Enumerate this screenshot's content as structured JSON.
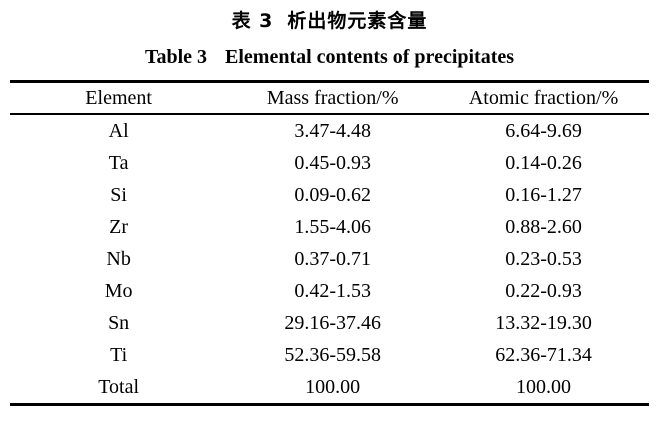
{
  "captions": {
    "zh": {
      "label": "表 3",
      "text": "析出物元素含量"
    },
    "en": {
      "label": "Table 3",
      "text": "Elemental contents of precipitates"
    }
  },
  "chart_data": {
    "type": "table",
    "columns": [
      "Element",
      "Mass fraction/%",
      "Atomic fraction/%"
    ],
    "rows": [
      [
        "Al",
        "3.47-4.48",
        "6.64-9.69"
      ],
      [
        "Ta",
        "0.45-0.93",
        "0.14-0.26"
      ],
      [
        "Si",
        "0.09-0.62",
        "0.16-1.27"
      ],
      [
        "Zr",
        "1.55-4.06",
        "0.88-2.60"
      ],
      [
        "Nb",
        "0.37-0.71",
        "0.23-0.53"
      ],
      [
        "Mo",
        "0.42-1.53",
        "0.22-0.93"
      ],
      [
        "Sn",
        "29.16-37.46",
        "13.32-19.30"
      ],
      [
        "Ti",
        "52.36-59.58",
        "62.36-71.34"
      ],
      [
        "Total",
        "100.00",
        "100.00"
      ]
    ]
  },
  "colors": {
    "text": "#000000",
    "background": "#ffffff",
    "rule": "#000000"
  }
}
